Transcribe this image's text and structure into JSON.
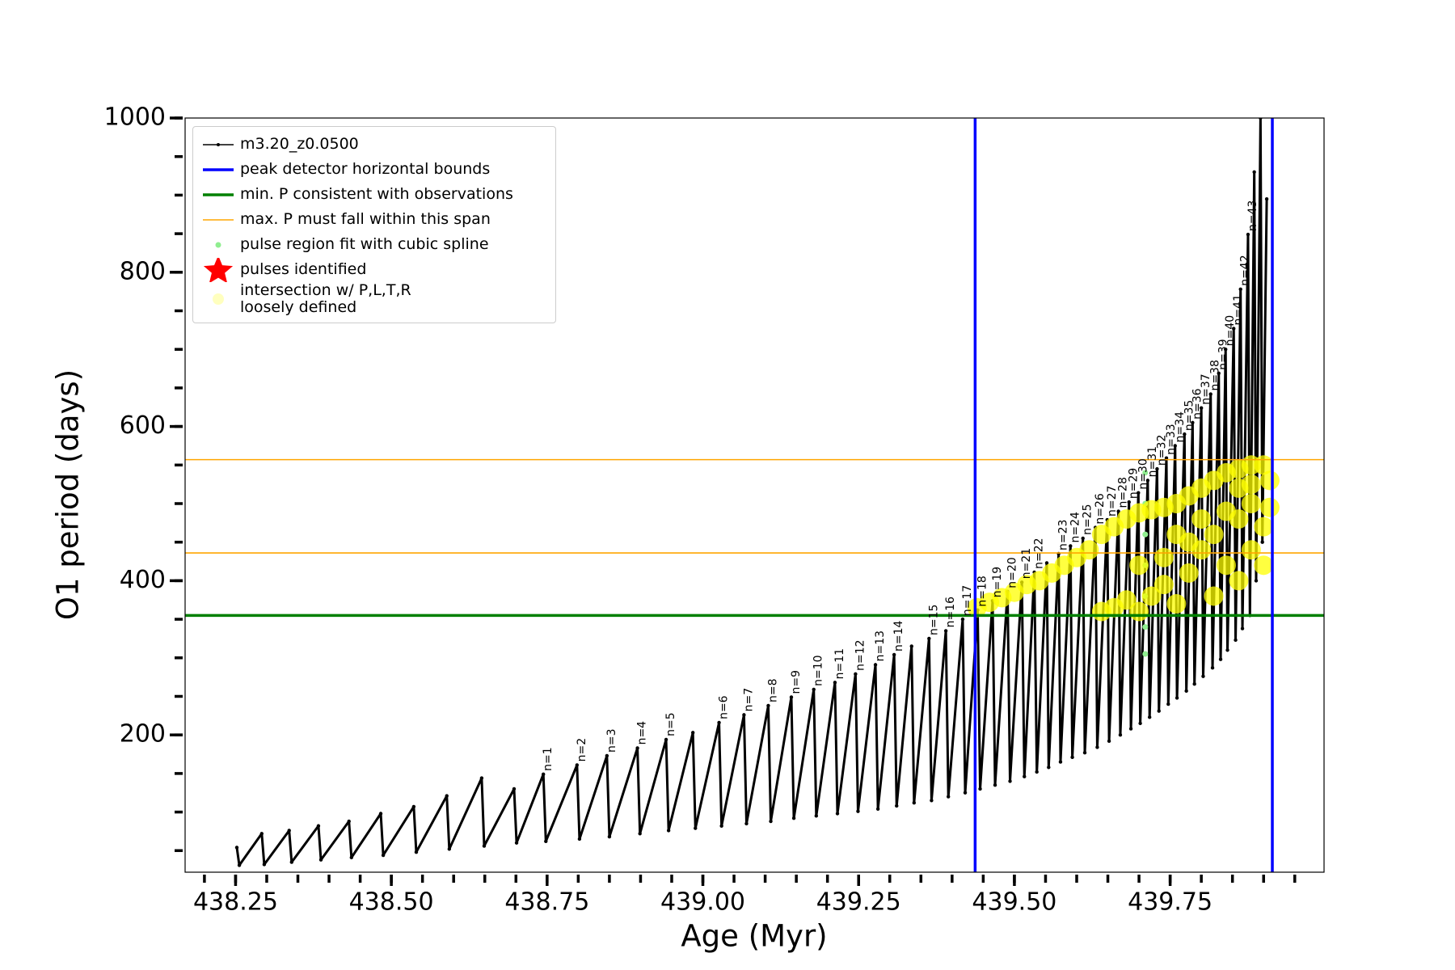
{
  "chart_data": {
    "type": "line",
    "x_label": "Age (Myr)",
    "y_label": "O1 period (days)",
    "xlim": [
      438.169,
      439.997
    ],
    "ylim": [
      22,
      1000
    ],
    "xticks": [
      438.25,
      {
        "value": 438.5,
        "label": "438.50"
      },
      438.75,
      {
        "value": 439,
        "label": "439.00"
      },
      439.25,
      {
        "value": 439.5,
        "label": "439.50"
      },
      439.75
    ],
    "yticks": [
      200,
      400,
      600,
      800,
      1000
    ],
    "xminorticks": [
      438.2,
      438.25,
      438.3,
      438.35,
      438.4,
      438.45,
      438.5,
      438.55,
      438.6,
      438.65,
      438.7,
      438.75,
      438.8,
      438.85,
      438.9,
      438.95,
      439,
      439.05,
      439.1,
      439.15,
      439.2,
      439.25,
      439.3,
      439.35,
      439.4,
      439.45,
      439.5,
      439.55,
      439.6,
      439.65,
      439.7,
      439.75,
      439.8,
      439.85,
      439.9,
      439.95
    ],
    "yminorticks": [
      50,
      100,
      150,
      200,
      250,
      300,
      350,
      400,
      450,
      500,
      550,
      600,
      650,
      700,
      750,
      800,
      850,
      900,
      950,
      1000
    ],
    "grid": false,
    "legend": "upper left",
    "series": [
      {
        "name": "m3.20_z0.0500",
        "kind": "line",
        "color": "#000000",
        "linewidth": 3,
        "x": [
          438.252,
          438.256,
          438.292,
          438.296,
          438.336,
          438.34,
          438.383,
          438.387,
          438.432,
          438.436,
          438.483,
          438.487,
          438.536,
          438.54,
          438.589,
          438.593,
          438.645,
          438.649,
          438.697,
          438.701,
          438.744,
          438.748,
          438.798,
          438.802,
          438.846,
          438.85,
          438.895,
          438.899,
          438.941,
          438.945,
          438.984,
          438.988,
          439.026,
          439.03,
          439.066,
          439.07,
          439.105,
          439.109,
          439.142,
          439.146,
          439.178,
          439.182,
          439.212,
          439.216,
          439.245,
          439.249,
          439.277,
          439.281,
          439.307,
          439.311,
          439.335,
          439.339,
          439.363,
          439.367,
          439.39,
          439.394,
          439.417,
          439.421,
          439.441,
          439.445,
          439.465,
          439.469,
          439.489,
          439.493,
          439.512,
          439.516,
          439.532,
          439.536,
          439.552,
          439.555,
          439.571,
          439.574,
          439.59,
          439.593,
          439.61,
          439.613,
          439.63,
          439.633,
          439.649,
          439.652,
          439.667,
          439.67,
          439.684,
          439.687,
          439.699,
          439.702,
          439.714,
          439.717,
          439.729,
          439.732,
          439.744,
          439.747,
          439.758,
          439.761,
          439.773,
          439.776,
          439.786,
          439.789,
          439.8,
          439.803,
          439.815,
          439.818,
          439.828,
          439.831,
          439.839,
          439.842,
          439.852,
          439.855,
          439.863,
          439.866,
          439.875,
          439.878,
          439.885,
          439.888,
          439.895,
          439.898,
          439.905
        ],
        "values": [
          54,
          31,
          72,
          32,
          76,
          35,
          82,
          38,
          88,
          41,
          98,
          44,
          107,
          48,
          121,
          52,
          144,
          56,
          130,
          60,
          149,
          62,
          161,
          65,
          173,
          68,
          183,
          72,
          194,
          76,
          203,
          79,
          216,
          82,
          226,
          85,
          238,
          88,
          249,
          92,
          259,
          95,
          268,
          98,
          279,
          101,
          291,
          104,
          304,
          108,
          315,
          112,
          325,
          115,
          335,
          120,
          350,
          125,
          362,
          130,
          374,
          135,
          386,
          140,
          398,
          146,
          411,
          152,
          423,
          158,
          435,
          165,
          445,
          171,
          455,
          177,
          469,
          184,
          479,
          192,
          490,
          200,
          502,
          208,
          514,
          215,
          530,
          223,
          545,
          231,
          559,
          240,
          575,
          248,
          590,
          257,
          605,
          266,
          624,
          276,
          642,
          287,
          669,
          298,
          700,
          310,
          727,
          323,
          778,
          338,
          849,
          355,
          930,
          400,
          1000,
          450,
          895
        ],
        "point_labels": [
          null,
          null,
          null,
          null,
          null,
          null,
          null,
          null,
          null,
          null,
          null,
          null,
          null,
          null,
          null,
          null,
          null,
          null,
          null,
          null,
          "n=1",
          null,
          "n=2",
          null,
          "n=3",
          null,
          "n=4",
          null,
          "n=5",
          null,
          null,
          null,
          "n=6",
          null,
          "n=7",
          null,
          "n=8",
          null,
          "n=9",
          null,
          "n=10",
          null,
          "n=11",
          null,
          "n=12",
          null,
          "n=13",
          null,
          "n=14",
          null,
          null,
          null,
          "n=15",
          null,
          "n=16",
          null,
          "n=17",
          null,
          "n=18",
          null,
          "n=19",
          null,
          "n=20",
          null,
          "n=21",
          null,
          "n=22",
          null,
          null,
          null,
          "n=23",
          null,
          "n=24",
          null,
          "n=25",
          null,
          "n=26",
          null,
          "n=27",
          null,
          "n=28",
          null,
          "n=29",
          null,
          "n=30",
          null,
          "n=31",
          null,
          "n=32",
          null,
          "n=33",
          null,
          "n=34",
          null,
          "n=35",
          null,
          "n=36",
          null,
          "n=37",
          null,
          "n=38",
          null,
          "n=39",
          null,
          "n=40",
          null,
          "n=41",
          null,
          "n=42",
          null,
          "n=43",
          null,
          null,
          null,
          null,
          null,
          null
        ]
      },
      {
        "name": "peak detector horizontal bounds",
        "kind": "vline",
        "color": "#0000ff",
        "linewidth": 3.5,
        "x": [
          439.437,
          439.914
        ]
      },
      {
        "name": "min. P consistent with observations",
        "kind": "hline",
        "color": "#008000",
        "linewidth": 3.5,
        "values": [
          355
        ]
      },
      {
        "name": "max. P must fall within this span",
        "kind": "hline",
        "color": "#ffa500",
        "linewidth": 1.6,
        "values": [
          436,
          557
        ]
      },
      {
        "name": "pulse region fit with cubic spline",
        "kind": "scatter",
        "marker": "circle",
        "color": "#90ee90",
        "x": [
          439.71,
          439.71,
          439.71,
          439.71,
          439.71,
          439.71,
          439.71
        ],
        "values": [
          305,
          340,
          380,
          420,
          460,
          500,
          540
        ]
      },
      {
        "name": "pulses identified",
        "kind": "scatter",
        "marker": "star",
        "color": "#ff0000",
        "x": [],
        "values": []
      },
      {
        "name": "intersection w/ P,L,T,R\nloosely defined",
        "kind": "scatter",
        "marker": "circle",
        "color": "#ffff00",
        "x": [
          439.44,
          439.46,
          439.48,
          439.5,
          439.52,
          439.54,
          439.56,
          439.58,
          439.6,
          439.62,
          439.64,
          439.66,
          439.68,
          439.7,
          439.72,
          439.74,
          439.76,
          439.78,
          439.8,
          439.82,
          439.84,
          439.86,
          439.88,
          439.9,
          439.91,
          439.91,
          439.64,
          439.66,
          439.68,
          439.7,
          439.72,
          439.74,
          439.76,
          439.78,
          439.8,
          439.82,
          439.84,
          439.86,
          439.88,
          439.9,
          439.74,
          439.78,
          439.8,
          439.84,
          439.86,
          439.88,
          439.82,
          439.86,
          439.88,
          439.9,
          439.7,
          439.76
        ],
        "values": [
          365,
          372,
          378,
          385,
          395,
          400,
          410,
          420,
          430,
          440,
          460,
          470,
          480,
          488,
          492,
          495,
          500,
          510,
          520,
          530,
          540,
          545,
          550,
          550,
          530,
          495,
          360,
          365,
          375,
          360,
          380,
          395,
          370,
          410,
          440,
          460,
          420,
          480,
          500,
          470,
          430,
          450,
          480,
          490,
          520,
          525,
          380,
          400,
          440,
          420,
          420,
          460
        ]
      }
    ]
  }
}
